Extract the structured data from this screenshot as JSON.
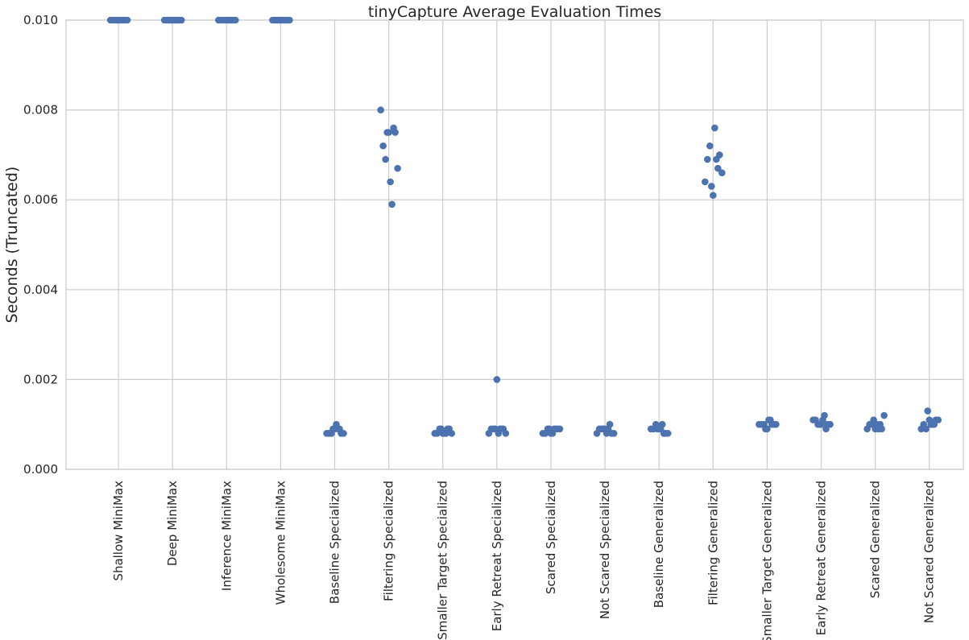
{
  "chart_data": {
    "type": "scatter",
    "subtype": "strip",
    "title": "tinyCapture Average Evaluation Times",
    "xlabel": "",
    "ylabel": "Seconds (Truncated)",
    "ylim": [
      0,
      0.01
    ],
    "yticks": [
      "0.000",
      "0.002",
      "0.004",
      "0.006",
      "0.008",
      "0.010"
    ],
    "grid": true,
    "colors": {
      "point": "#4c72b0",
      "grid": "#cccccc",
      "text": "#262626"
    },
    "categories": [
      "Shallow MiniMax",
      "Deep MiniMax",
      "Inference MiniMax",
      "Wholesome MiniMax",
      "Baseline Specialized",
      "Filtering Specialized",
      "Smaller Target Specialized",
      "Early Retreat Specialized",
      "Scared Specialized",
      "Not Scared Specialized",
      "Baseline Generalized",
      "Filtering Generalized",
      "Smaller Target Generalized",
      "Early Retreat Generalized",
      "Scared Generalized",
      "Not Scared Generalized"
    ],
    "values": [
      [
        0.01,
        0.01,
        0.01,
        0.01,
        0.01,
        0.01,
        0.01,
        0.01,
        0.01,
        0.01
      ],
      [
        0.01,
        0.01,
        0.01,
        0.01,
        0.01,
        0.01,
        0.01,
        0.01,
        0.01,
        0.01
      ],
      [
        0.01,
        0.01,
        0.01,
        0.01,
        0.01,
        0.01,
        0.01,
        0.01,
        0.01,
        0.01
      ],
      [
        0.01,
        0.01,
        0.01,
        0.01,
        0.01,
        0.01,
        0.01,
        0.01,
        0.01,
        0.01
      ],
      [
        0.0008,
        0.0008,
        0.0009,
        0.0009,
        0.0008,
        0.0009,
        0.0009,
        0.0008,
        0.0008,
        0.001
      ],
      [
        0.0064,
        0.0069,
        0.0067,
        0.0059,
        0.0075,
        0.008,
        0.0076,
        0.0075,
        0.0072,
        0.0075
      ],
      [
        0.0009,
        0.0008,
        0.0009,
        0.0008,
        0.0008,
        0.0009,
        0.0008,
        0.0009,
        0.0008,
        0.0008
      ],
      [
        0.0009,
        0.0009,
        0.0008,
        0.0009,
        0.0008,
        0.0009,
        0.0009,
        0.0008,
        0.0009,
        0.002
      ],
      [
        0.0008,
        0.0008,
        0.0009,
        0.0008,
        0.0009,
        0.0009,
        0.0009,
        0.0009,
        0.0008,
        0.0009
      ],
      [
        0.001,
        0.0009,
        0.0009,
        0.0008,
        0.0008,
        0.0009,
        0.0008,
        0.0009,
        0.0009,
        0.0008
      ],
      [
        0.0009,
        0.0008,
        0.0009,
        0.0009,
        0.0008,
        0.0009,
        0.001,
        0.0008,
        0.001,
        0.0009
      ],
      [
        0.0063,
        0.0064,
        0.0067,
        0.0061,
        0.0069,
        0.007,
        0.0076,
        0.0072,
        0.0066,
        0.0069
      ],
      [
        0.0011,
        0.0009,
        0.001,
        0.001,
        0.0009,
        0.001,
        0.001,
        0.0011,
        0.001,
        0.001
      ],
      [
        0.001,
        0.0012,
        0.001,
        0.0011,
        0.0009,
        0.001,
        0.0011,
        0.001,
        0.0011,
        0.001
      ],
      [
        0.001,
        0.0012,
        0.0009,
        0.0011,
        0.0009,
        0.001,
        0.0009,
        0.001,
        0.0009,
        0.001
      ],
      [
        0.001,
        0.0009,
        0.0011,
        0.001,
        0.0013,
        0.0009,
        0.001,
        0.0011,
        0.001,
        0.0011
      ]
    ]
  }
}
